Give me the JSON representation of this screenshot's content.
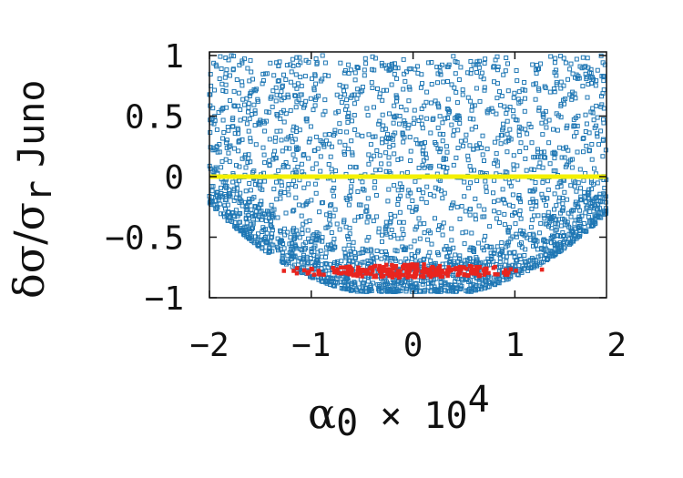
{
  "chart_data": {
    "type": "scatter",
    "title": "",
    "xlabel": {
      "symbol": "α",
      "subscript": "0",
      "rest": " × 10",
      "superscript": "4"
    },
    "ylabel": {
      "main": "δσ/σ",
      "subscript": "r",
      "tag": "Juno"
    },
    "xlim": [
      -2,
      1.9
    ],
    "ylim": [
      -1,
      1.03
    ],
    "xticks": [
      -2,
      -1,
      0,
      1,
      2
    ],
    "xtick_labels": [
      "−2",
      "−1",
      "0",
      "1",
      "2"
    ],
    "yticks": [
      1,
      0.5,
      0,
      -0.5,
      -1
    ],
    "ytick_labels": [
      "1",
      "0.5",
      "0",
      "−0.5",
      "−1"
    ],
    "grid": false,
    "legend": "none",
    "colors": {
      "blue_points": "#1f77b4",
      "red_points": "#e8251e",
      "yellow_line": "#f3f000"
    },
    "series": [
      {
        "marker": "open-square",
        "color": "#1f77b4",
        "description_points": [
          [
            -1.9,
            0.95
          ],
          [
            -1.7,
            0.6
          ],
          [
            -1.5,
            0.2
          ],
          [
            -1.3,
            -0.3
          ],
          [
            -1.1,
            -0.6
          ],
          [
            -0.9,
            -0.75
          ],
          [
            -0.6,
            -0.82
          ],
          [
            -0.2,
            -0.88
          ],
          [
            0.2,
            -0.86
          ],
          [
            0.6,
            -0.8
          ],
          [
            1.0,
            -0.65
          ],
          [
            1.3,
            -0.35
          ],
          [
            1.6,
            0.1
          ],
          [
            1.8,
            0.55
          ],
          [
            1.85,
            0.95
          ],
          [
            -0.5,
            0.9
          ],
          [
            0.0,
            0.6
          ],
          [
            0.5,
            0.3
          ],
          [
            -1.0,
            0.1
          ],
          [
            1.0,
            0.5
          ]
        ]
      },
      {
        "marker": "filled-square",
        "color": "#e8251e",
        "description_points": [
          [
            -1.0,
            -0.77
          ],
          [
            -0.7,
            -0.75
          ],
          [
            -0.4,
            -0.76
          ],
          [
            -0.2,
            -0.79
          ],
          [
            0.0,
            -0.78
          ],
          [
            0.1,
            -0.8
          ],
          [
            0.3,
            -0.77
          ],
          [
            0.6,
            -0.75
          ],
          [
            0.9,
            -0.76
          ],
          [
            -0.1,
            -0.84
          ]
        ]
      },
      {
        "marker": "line",
        "color": "#f3f000",
        "x": [
          -2,
          1.9
        ],
        "y": [
          0,
          0
        ]
      }
    ]
  }
}
